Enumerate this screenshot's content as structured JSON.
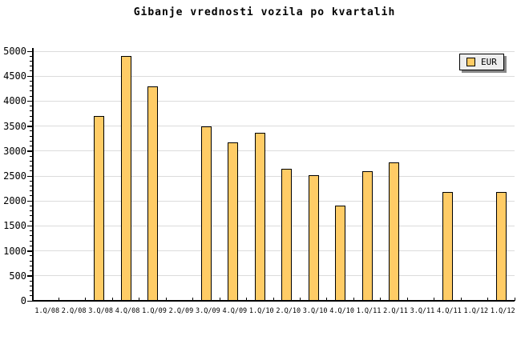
{
  "title": "Gibanje vrednosti vozila po kvartalih",
  "legend": {
    "label": "EUR"
  },
  "colors": {
    "background": "#FFFFFF",
    "bar_fill": "#FFCC66",
    "bar_border": "#000000",
    "grid": "#DCDCDC",
    "axis": "#000000",
    "text": "#000000",
    "legend_bg": "#EEEEEE",
    "legend_border": "#000000",
    "legend_shadow": "#888888"
  },
  "chart_data": {
    "type": "bar",
    "title": "Gibanje vrednosti vozila po kvartalih",
    "categories": [
      "1.Q/08",
      "2.Q/08",
      "3.Q/08",
      "4.Q/08",
      "1.Q/09",
      "2.Q/09",
      "3.Q/09",
      "4.Q/09",
      "1.Q/10",
      "2.Q/10",
      "3.Q/10",
      "4.Q/10",
      "1.Q/11",
      "2.Q/11",
      "3.Q/11",
      "4.Q/11",
      "1.Q/12",
      "1.Q/12"
    ],
    "series": [
      {
        "name": "EUR",
        "values": [
          null,
          null,
          3700,
          4900,
          4300,
          null,
          3500,
          3170,
          3360,
          2650,
          2510,
          1900,
          2590,
          2780,
          null,
          2180,
          null,
          2180
        ]
      }
    ],
    "xlabel": "",
    "ylabel": "",
    "ylim": [
      0,
      5000
    ],
    "y_tick_step": 500,
    "y_minor_tick_step": 100,
    "y_tick_labels": [
      "0",
      "500",
      "1000",
      "1500",
      "2000",
      "2500",
      "3000",
      "3500",
      "4000",
      "4500",
      "5000"
    ],
    "grid": true,
    "grid_axis": "y",
    "legend_position": "top-right"
  }
}
